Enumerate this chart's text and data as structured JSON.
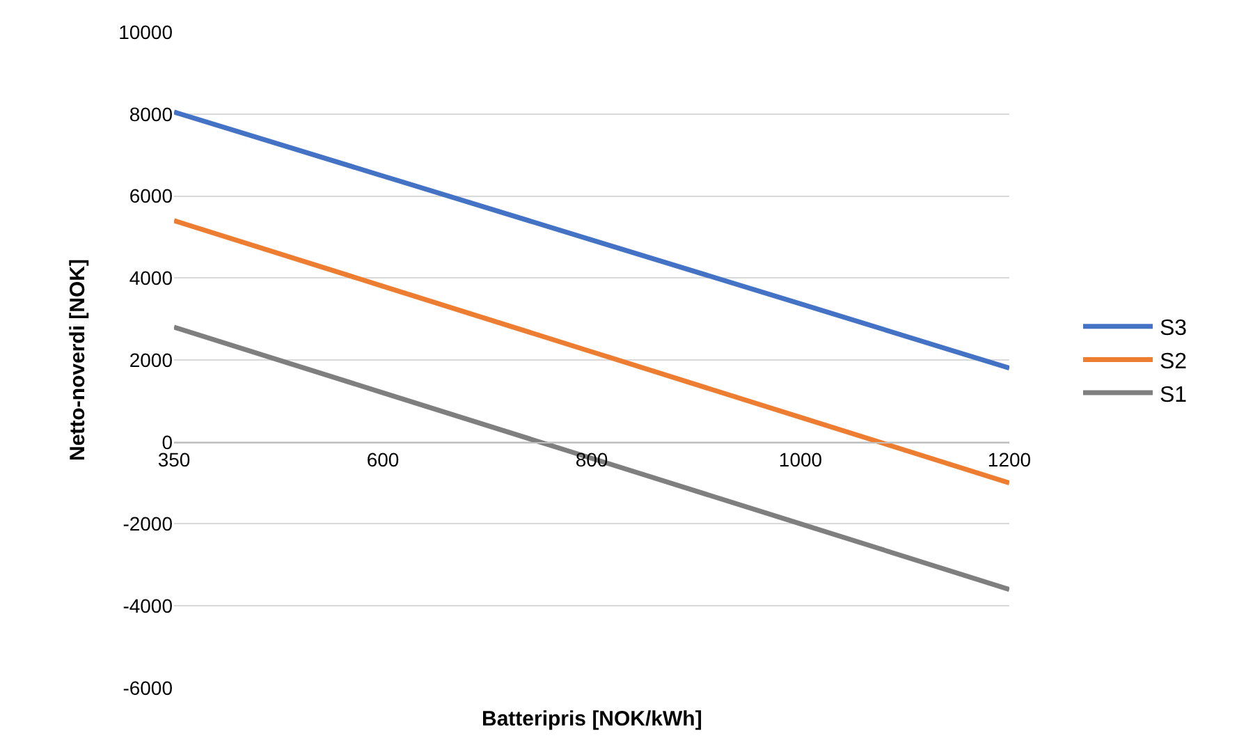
{
  "chart_data": {
    "type": "line",
    "xlabel": "Batteripris [NOK/kWh]",
    "ylabel": "Netto-noverdi [NOK]",
    "categories": [
      "350",
      "600",
      "800",
      "1000",
      "1200"
    ],
    "series": [
      {
        "name": "S3",
        "color": "#4472c4",
        "values": [
          8050,
          6490,
          4930,
          3370,
          1800
        ]
      },
      {
        "name": "S2",
        "color": "#ed7d31",
        "values": [
          5400,
          3800,
          2200,
          600,
          -1000
        ]
      },
      {
        "name": "S1",
        "color": "#7f7f7f",
        "values": [
          2800,
          1200,
          -400,
          -2000,
          -3600
        ]
      }
    ],
    "ylim": [
      -6000,
      10000
    ],
    "yticks": [
      -6000,
      -4000,
      -2000,
      0,
      2000,
      4000,
      6000,
      8000,
      10000
    ],
    "grid": "y",
    "legend": "right",
    "marker": "none",
    "line_style": "solid"
  }
}
